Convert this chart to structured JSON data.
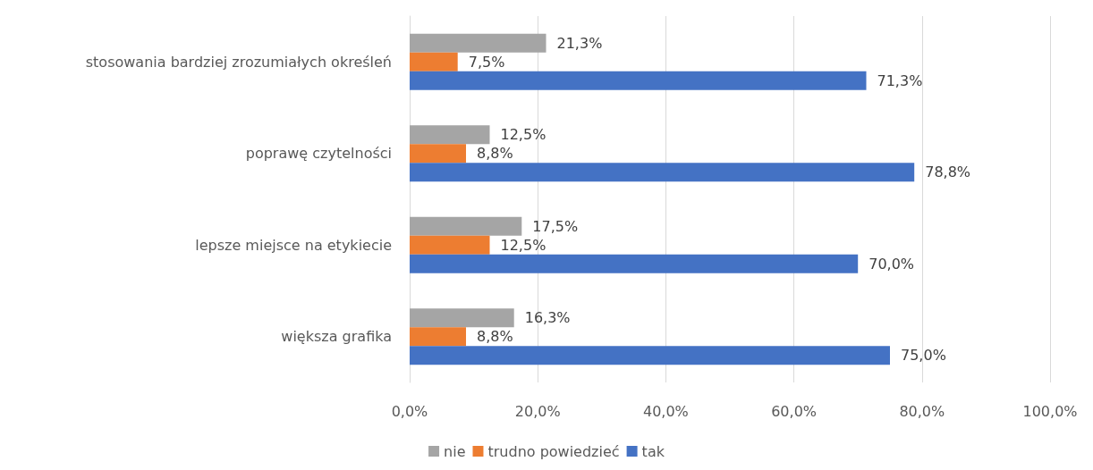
{
  "chart_data": {
    "type": "bar",
    "orientation": "horizontal",
    "categories": [
      "stosowania bardziej zrozumiałych określeń",
      "poprawę czytelności",
      "lepsze miejsce na etykiecie",
      "większa grafika"
    ],
    "series": [
      {
        "name": "nie",
        "color": "#a5a5a5",
        "values": [
          21.3,
          12.5,
          17.5,
          16.3
        ],
        "value_labels": [
          "21,3%",
          "12,5%",
          "17,5%",
          "16,3%"
        ]
      },
      {
        "name": "trudno powiedzieć",
        "color": "#ed7d31",
        "values": [
          7.5,
          8.8,
          12.5,
          8.8
        ],
        "value_labels": [
          "7,5%",
          "8,8%",
          "12,5%",
          "8,8%"
        ]
      },
      {
        "name": "tak",
        "color": "#4472c4",
        "values": [
          71.3,
          78.8,
          70.0,
          75.0
        ],
        "value_labels": [
          "71,3%",
          "78,8%",
          "70,0%",
          "75,0%"
        ]
      }
    ],
    "xlim": [
      0,
      100
    ],
    "xticks": [
      {
        "value": 0,
        "label": "0,0%"
      },
      {
        "value": 20,
        "label": "20,0%"
      },
      {
        "value": 40,
        "label": "40,0%"
      },
      {
        "value": 60,
        "label": "60,0%"
      },
      {
        "value": 80,
        "label": "80,0%"
      },
      {
        "value": 100,
        "label": "100,0%"
      }
    ],
    "grid": "x",
    "legend": "bottom"
  }
}
